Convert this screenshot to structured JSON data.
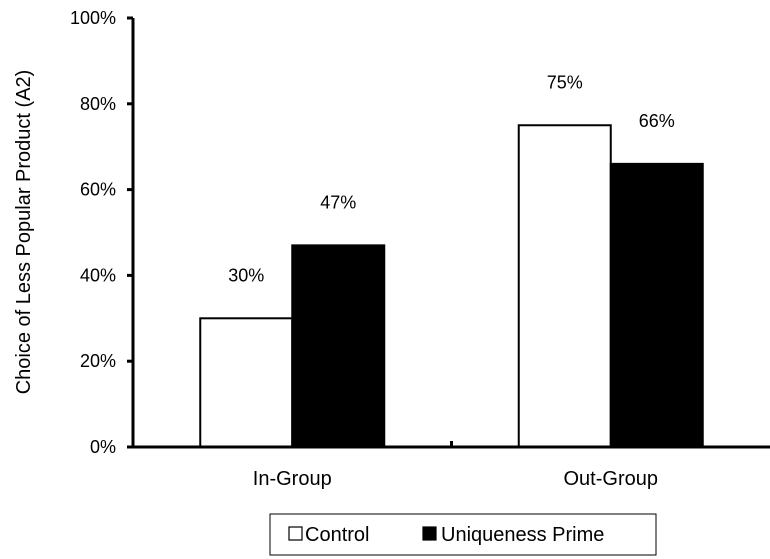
{
  "chart_data": {
    "type": "bar",
    "title": "",
    "xlabel": "",
    "ylabel": "Choice of Less Popular Product (A2)",
    "ylim": [
      0,
      100
    ],
    "yticks": [
      "0%",
      "20%",
      "40%",
      "60%",
      "80%",
      "100%"
    ],
    "ytick_values": [
      0,
      20,
      40,
      60,
      80,
      100
    ],
    "categories": [
      "In-Group",
      "Out-Group"
    ],
    "series": [
      {
        "name": "Control",
        "values": [
          30,
          75
        ],
        "labels": [
          "30%",
          "75%"
        ],
        "color": "#ffffff"
      },
      {
        "name": "Uniqueness Prime",
        "values": [
          47,
          66
        ],
        "labels": [
          "47%",
          "66%"
        ],
        "color": "#000000"
      }
    ],
    "grid": false,
    "legend_position": "bottom-center"
  }
}
